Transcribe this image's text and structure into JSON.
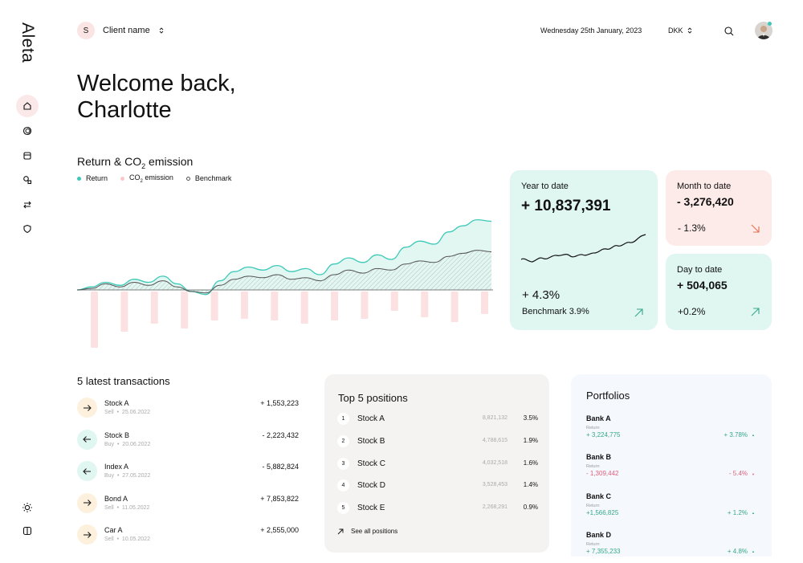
{
  "app": {
    "logo": "Aleta"
  },
  "header": {
    "client_initial": "S",
    "client_name": "Client name",
    "date": "Wednesday 25th January, 2023",
    "currency": "DKK"
  },
  "welcome": {
    "line1": "Welcome back,",
    "line2": "Charlotte"
  },
  "chart_data": {
    "type": "area",
    "title": "Return & CO₂ emission",
    "title_main": "Return & CO",
    "title_sub": "2",
    "title_end": " emission",
    "legend_position": "top-left",
    "grid": false,
    "series": [
      {
        "name": "Return",
        "color": "#3dc9b8",
        "values": [
          0,
          0.2,
          0.5,
          0.3,
          0.7,
          0.5,
          0.9,
          0.4,
          -0.1,
          -0.3,
          0.6,
          1.2,
          1.5,
          1.3,
          1.6,
          1.2,
          1.4,
          1.0,
          1.7,
          2.1,
          1.8,
          2.3,
          2.0,
          2.8,
          3.2,
          3.0,
          3.8,
          4.2,
          4.6,
          4.5
        ]
      },
      {
        "name": "CO₂ emission",
        "color": "#f9c9c9",
        "values": [
          -3.5,
          -2.5,
          -2.0,
          -2.3,
          -1.8,
          -1.7,
          -1.8,
          -2.0,
          -1.8,
          -1.7,
          -1.2,
          -1.6,
          -1.9,
          -1.4
        ]
      },
      {
        "name": "Benchmark",
        "color": "#555555",
        "values": [
          0,
          0.1,
          0.4,
          0.2,
          0.5,
          0.3,
          0.6,
          0.2,
          -0.1,
          -0.2,
          0.3,
          0.7,
          0.9,
          0.8,
          1.0,
          0.7,
          0.8,
          0.6,
          1.0,
          1.3,
          1.1,
          1.4,
          1.3,
          1.7,
          1.9,
          1.8,
          2.2,
          2.4,
          2.6,
          2.5
        ]
      }
    ],
    "legend": [
      {
        "name": "Return",
        "label_main": "Return",
        "label_sub": "",
        "label_end": "",
        "color": "#3dc9b8"
      },
      {
        "name": "CO₂ emission",
        "label_main": "CO",
        "label_sub": "2",
        "label_end": " emission",
        "color": "#f9c9c9"
      },
      {
        "name": "Benchmark",
        "label_main": "Benchmark",
        "label_sub": "",
        "label_end": "",
        "color": "#555555"
      }
    ]
  },
  "cards": {
    "ytd": {
      "label": "Year to date",
      "value": "+ 10,837,391",
      "pct": "+ 4.3%",
      "benchmark": "Benchmark 3.9%"
    },
    "mtd": {
      "label": "Month to date",
      "value": "- 3,276,420",
      "pct": "- 1.3%"
    },
    "dtd": {
      "label": "Day to date",
      "value": "+ 504,065",
      "pct": "+0.2%"
    }
  },
  "transactions": {
    "title": "5 latest transactions",
    "items": [
      {
        "name": "Stock A",
        "type": "Sell",
        "date": "25.06.2022",
        "amount": "+ 1,553,223",
        "dir": "sell"
      },
      {
        "name": "Stock B",
        "type": "Buy",
        "date": "20.06.2022",
        "amount": "- 2,223,432",
        "dir": "buy"
      },
      {
        "name": "Index A",
        "type": "Buy",
        "date": "27.05.2022",
        "amount": "- 5,882,824",
        "dir": "buy"
      },
      {
        "name": "Bond A",
        "type": "Sell",
        "date": "11.05.2022",
        "amount": "+ 7,853,822",
        "dir": "sell"
      },
      {
        "name": "Car A",
        "type": "Sell",
        "date": "10.05.2022",
        "amount": "+ 2,555,000",
        "dir": "sell"
      }
    ]
  },
  "top5": {
    "title": "Top 5 positions",
    "see_all": "See all positions",
    "items": [
      {
        "rank": "1",
        "name": "Stock A",
        "value": "8,821,132",
        "pct": "3.5%"
      },
      {
        "rank": "2",
        "name": "Stock B",
        "value": "4,788,615",
        "pct": "1.9%"
      },
      {
        "rank": "3",
        "name": "Stock C",
        "value": "4,032,518",
        "pct": "1.6%"
      },
      {
        "rank": "4",
        "name": "Stock D",
        "value": "3,528,453",
        "pct": "1.4%"
      },
      {
        "rank": "5",
        "name": "Stock E",
        "value": "2,268,291",
        "pct": "0.9%"
      }
    ]
  },
  "portfolios": {
    "title": "Portfolios",
    "items": [
      {
        "name": "Bank A",
        "sub": "Return",
        "value": "+ 3,224,775",
        "pct": "+ 3.78%",
        "trend": "up"
      },
      {
        "name": "Bank B",
        "sub": "Return",
        "value": "- 1,309,442",
        "pct": "- 5.4%",
        "trend": "down"
      },
      {
        "name": "Bank C",
        "sub": "Return",
        "value": "+1,566,825",
        "pct": "+ 1.2%",
        "trend": "up"
      },
      {
        "name": "Bank D",
        "sub": "Return",
        "value": "+ 7,355,233",
        "pct": "+ 4.8%",
        "trend": "up"
      }
    ]
  },
  "colors": {
    "teal": "#3dc9b8",
    "teal_bg": "#dff6f1",
    "pink_bg": "#fdebe9",
    "green": "#36a88c",
    "red": "#e0607a"
  }
}
